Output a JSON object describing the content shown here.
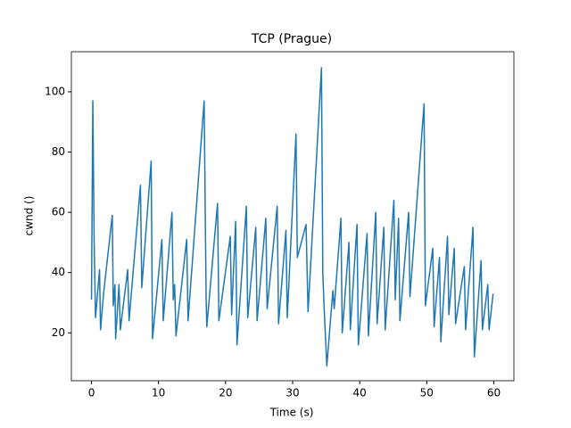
{
  "chart_data": {
    "type": "line",
    "title": "TCP (Prague)",
    "x_label": "Time (s)",
    "y_label": "cwnd ()",
    "color": "#1f77b4",
    "x": [
      0,
      0.2,
      0.4,
      0.6,
      1.2,
      1.35,
      1.8,
      3.1,
      3.25,
      3.5,
      3.6,
      4.1,
      4.3,
      5.4,
      5.6,
      7.3,
      7.5,
      8.9,
      9.1,
      10.5,
      10.7,
      12,
      12.2,
      12.4,
      12.6,
      14.2,
      14.4,
      16.8,
      17.1,
      17.2,
      18.8,
      19,
      20.7,
      20.9,
      21.5,
      21.7,
      23.1,
      23.3,
      24.5,
      24.7,
      26,
      26.2,
      27.7,
      27.9,
      29,
      29.2,
      30.5,
      30.7,
      32,
      32.3,
      34.3,
      34.5,
      34.7,
      35.1,
      36,
      36.2,
      37.2,
      37.4,
      38.4,
      38.6,
      39.6,
      39.8,
      41.1,
      41.3,
      42.4,
      42.6,
      43.6,
      43.8,
      45.1,
      45.3,
      45.8,
      46,
      47.3,
      47.5,
      49.6,
      49.8,
      50.9,
      51.1,
      51.9,
      52.1,
      53.1,
      53.3,
      54.1,
      54.3,
      55.6,
      55.8,
      56.9,
      57.1,
      58.1,
      58.3,
      59.1,
      59.3,
      59.9
    ],
    "values": [
      31,
      97,
      50,
      25,
      41,
      21,
      33,
      59,
      29,
      36,
      18,
      36,
      21,
      41,
      24,
      69,
      35,
      77,
      18,
      51,
      24,
      60,
      31,
      36,
      19,
      51,
      24,
      97,
      31,
      22,
      63,
      24,
      52,
      26,
      57,
      16,
      62,
      25,
      55,
      24,
      58,
      28,
      62,
      23,
      54,
      25,
      86,
      45,
      56,
      27,
      108,
      40,
      28,
      9,
      34,
      28,
      58,
      20,
      50,
      21,
      56,
      16,
      53,
      19,
      60,
      23,
      55,
      21,
      64,
      31,
      58,
      24,
      60,
      32,
      96,
      29,
      48,
      22,
      45,
      17,
      52,
      26,
      48,
      23,
      42,
      21,
      55,
      12,
      44,
      21,
      36,
      21,
      33
    ],
    "xlim": [
      -3,
      63
    ],
    "ylim": [
      4.1,
      113.3
    ],
    "xticks": [
      0,
      10,
      20,
      30,
      40,
      50,
      60
    ],
    "yticks": [
      20,
      40,
      60,
      80,
      100
    ]
  }
}
